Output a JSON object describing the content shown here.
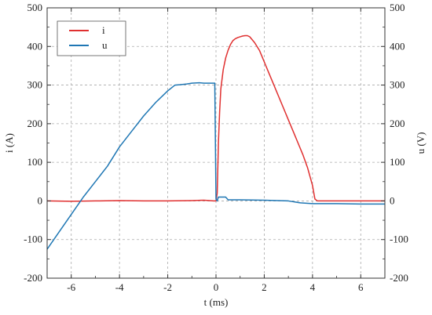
{
  "chart_data": {
    "type": "line",
    "title": "",
    "xlabel": "t (ms)",
    "ylabel_left": "i (A)",
    "ylabel_right": "u (V)",
    "xlim": [
      -7,
      7
    ],
    "ylim": [
      -200,
      500
    ],
    "x_ticks": [
      -6,
      -4,
      -2,
      0,
      2,
      4,
      6
    ],
    "y_ticks": [
      -200,
      -100,
      0,
      100,
      200,
      300,
      400,
      500
    ],
    "grid": true,
    "legend_position": "top-left",
    "series": [
      {
        "name": "i",
        "color": "#e03030",
        "points": [
          [
            -7,
            0
          ],
          [
            -6,
            -1
          ],
          [
            -5,
            0
          ],
          [
            -4,
            1
          ],
          [
            -3,
            0
          ],
          [
            -2,
            0
          ],
          [
            -1,
            1
          ],
          [
            -0.5,
            2
          ],
          [
            -0.1,
            0
          ],
          [
            0,
            0
          ],
          [
            0.05,
            20
          ],
          [
            0.1,
            150
          ],
          [
            0.15,
            230
          ],
          [
            0.2,
            290
          ],
          [
            0.3,
            340
          ],
          [
            0.4,
            370
          ],
          [
            0.5,
            390
          ],
          [
            0.6,
            405
          ],
          [
            0.7,
            415
          ],
          [
            0.8,
            420
          ],
          [
            0.9,
            423
          ],
          [
            1.0,
            425
          ],
          [
            1.1,
            427
          ],
          [
            1.2,
            428
          ],
          [
            1.3,
            428
          ],
          [
            1.4,
            425
          ],
          [
            1.6,
            410
          ],
          [
            1.8,
            390
          ],
          [
            2.0,
            360
          ],
          [
            2.2,
            330
          ],
          [
            2.4,
            300
          ],
          [
            2.6,
            270
          ],
          [
            2.8,
            240
          ],
          [
            3.0,
            210
          ],
          [
            3.2,
            180
          ],
          [
            3.4,
            150
          ],
          [
            3.6,
            120
          ],
          [
            3.8,
            85
          ],
          [
            4.0,
            40
          ],
          [
            4.1,
            5
          ],
          [
            4.2,
            0
          ],
          [
            5,
            0
          ],
          [
            6,
            0
          ],
          [
            7,
            0
          ]
        ]
      },
      {
        "name": "u",
        "color": "#1f77b4",
        "points": [
          [
            -7,
            -125
          ],
          [
            -6.5,
            -80
          ],
          [
            -6,
            -35
          ],
          [
            -5.5,
            10
          ],
          [
            -5,
            50
          ],
          [
            -4.5,
            90
          ],
          [
            -4,
            140
          ],
          [
            -3.5,
            180
          ],
          [
            -3,
            220
          ],
          [
            -2.5,
            255
          ],
          [
            -2,
            285
          ],
          [
            -1.7,
            300
          ],
          [
            -1.5,
            301
          ],
          [
            -1.2,
            303
          ],
          [
            -1,
            305
          ],
          [
            -0.7,
            306
          ],
          [
            -0.5,
            305
          ],
          [
            -0.1,
            305
          ],
          [
            -0.05,
            305
          ],
          [
            0,
            5
          ],
          [
            0.05,
            0
          ],
          [
            0.1,
            10
          ],
          [
            0.4,
            10
          ],
          [
            0.5,
            3
          ],
          [
            1,
            3
          ],
          [
            2,
            2
          ],
          [
            3,
            0
          ],
          [
            3.5,
            -5
          ],
          [
            4,
            -7
          ],
          [
            5,
            -7
          ],
          [
            6,
            -8
          ],
          [
            7,
            -8
          ]
        ]
      }
    ]
  }
}
